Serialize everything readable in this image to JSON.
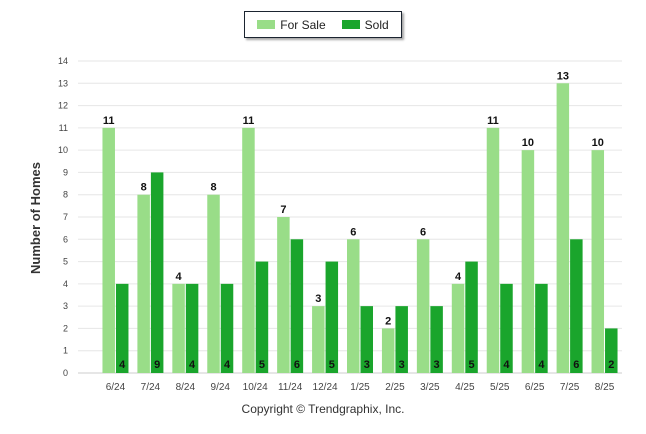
{
  "chart_data": {
    "type": "bar",
    "categories": [
      "6/24",
      "7/24",
      "8/24",
      "9/24",
      "10/24",
      "11/24",
      "12/24",
      "1/25",
      "2/25",
      "3/25",
      "4/25",
      "5/25",
      "6/25",
      "7/25",
      "8/25"
    ],
    "series": [
      {
        "name": "For Sale",
        "color": "#99dd88",
        "values": [
          11,
          8,
          4,
          8,
          11,
          7,
          3,
          6,
          2,
          6,
          4,
          11,
          10,
          13,
          10
        ]
      },
      {
        "name": "Sold",
        "color": "#1aa52c",
        "values": [
          4,
          9,
          4,
          4,
          5,
          6,
          5,
          3,
          3,
          3,
          5,
          4,
          4,
          6,
          2
        ]
      }
    ],
    "yticks": [
      "0",
      "1",
      "2",
      "3",
      "4",
      "5",
      "6",
      "7",
      "8",
      "9",
      "10",
      "11",
      "12",
      "13",
      "14"
    ],
    "ylim": [
      0,
      14
    ],
    "ylabel": "Number of Homes",
    "xlabel": "",
    "legend_position": "top-center",
    "grid": true
  },
  "legend": {
    "for_sale_label": "For Sale",
    "sold_label": "Sold"
  },
  "footer": {
    "copyright": "Copyright © Trendgraphix, Inc."
  }
}
